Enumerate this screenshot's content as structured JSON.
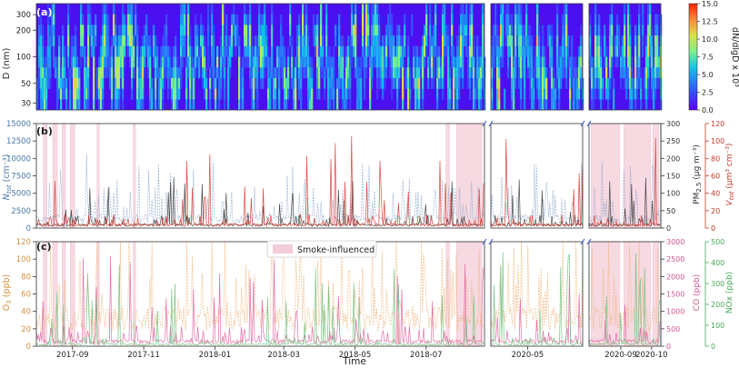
{
  "chart_data": [
    {
      "panel": "(a)",
      "type": "heatmap",
      "ylabel": "D (nm)",
      "yscale": "log",
      "ylim": [
        25,
        400
      ],
      "yticks": [
        "30",
        "50",
        "100",
        "200",
        "300"
      ],
      "colorbar": {
        "label": "dN/dlgD x 10³",
        "range": [
          0,
          15
        ],
        "ticks": [
          "0.0",
          "2.5",
          "5.0",
          "7.5",
          "10.0",
          "12.5",
          "15.0"
        ],
        "colormap": "rainbow"
      }
    },
    {
      "panel": "(b)",
      "type": "line",
      "ylabel_left": "N_tot (cm⁻³)",
      "ylabel_left_main": "N",
      "ylabel_left_sub": "tot",
      "ylabel_left_tail": " (cm⁻³)",
      "ylim_left": [
        0,
        15000
      ],
      "yticks_left": [
        "0",
        "2500",
        "5000",
        "7500",
        "10000",
        "12500",
        "15000"
      ],
      "ylabel_mid": "PM₂.₅ (μg m⁻³)",
      "ylabel_mid_main": "PM",
      "ylabel_mid_sub": "2.5",
      "ylabel_mid_tail": " (μg m⁻³)",
      "ylim_mid": [
        0,
        300
      ],
      "yticks_mid": [
        "0",
        "50",
        "100",
        "150",
        "200",
        "250",
        "300"
      ],
      "ylabel_right": "V_tot (μm³ cm⁻³)",
      "ylabel_right_main": "V",
      "ylabel_right_sub": "tot",
      "ylabel_right_tail": " (μm³ cm⁻³)",
      "ylim_right": [
        0,
        120
      ],
      "yticks_right": [
        "0",
        "20",
        "40",
        "60",
        "80",
        "100",
        "120"
      ],
      "series": [
        {
          "name": "N_tot",
          "color": "#8fa9cc",
          "style": "dashed",
          "baseline": 1500,
          "spike_max": 11000
        },
        {
          "name": "PM2.5",
          "color": "#3a3a3a",
          "style": "solid",
          "baseline": 10,
          "spike_max": 150
        },
        {
          "name": "V_tot",
          "color": "#d9342b",
          "style": "solid",
          "baseline": 4,
          "spike_max": 110
        }
      ]
    },
    {
      "panel": "(c)",
      "type": "line",
      "ylabel_left": "O₃ (ppb)",
      "ylabel_left_main": "O",
      "ylabel_left_sub": "3",
      "ylabel_left_tail": " (ppb)",
      "ylim_left": [
        0,
        120
      ],
      "yticks_left": [
        "0",
        "20",
        "40",
        "60",
        "80",
        "100",
        "120"
      ],
      "ylabel_mid": "CO (ppb)",
      "ylim_mid": [
        0,
        3000
      ],
      "yticks_mid": [
        "0",
        "500",
        "1000",
        "1500",
        "2000",
        "2500",
        "3000"
      ],
      "ylabel_right": "NOx (ppb)",
      "ylim_right": [
        0,
        500
      ],
      "yticks_right": [
        "0",
        "100",
        "200",
        "300",
        "400",
        "500"
      ],
      "legend": {
        "label": "Smoke-influenced",
        "color": "#f3cdd8",
        "position": "top-center"
      },
      "series": [
        {
          "name": "O3",
          "color": "#f0b47a",
          "style": "dashed",
          "baseline": 35,
          "spike_max": 100
        },
        {
          "name": "CO",
          "color": "#e0609e",
          "style": "solid",
          "baseline": 150,
          "spike_max": 2700
        },
        {
          "name": "NOx",
          "color": "#6cc07a",
          "style": "solid",
          "baseline": 10,
          "spike_max": 450
        }
      ]
    }
  ],
  "x_axis": {
    "label": "Time",
    "segments": [
      {
        "start": "2017-08-01",
        "end": "2018-08-20",
        "ticks": [
          "2017-09",
          "2017-11",
          "2018-01",
          "2018-03",
          "2018-05",
          "2018-07"
        ]
      },
      {
        "start": "2020-04-01",
        "end": "2020-06-15",
        "ticks": [
          "2020-05"
        ]
      },
      {
        "start": "2020-08-01",
        "end": "2020-10-10",
        "ticks": [
          "2020-09",
          "2020-10"
        ]
      }
    ]
  },
  "smoke_periods": [
    [
      "2017-08-07",
      "2017-08-10"
    ],
    [
      "2017-08-15",
      "2017-08-19"
    ],
    [
      "2017-08-23",
      "2017-08-26"
    ],
    [
      "2017-08-30",
      "2017-09-03"
    ],
    [
      "2017-09-22",
      "2017-09-24"
    ],
    [
      "2017-10-23",
      "2017-10-25"
    ],
    [
      "2018-07-18",
      "2018-07-21"
    ],
    [
      "2018-07-27",
      "2018-08-18"
    ],
    [
      "2020-08-03",
      "2020-08-31"
    ],
    [
      "2020-09-04",
      "2020-09-30"
    ],
    [
      "2020-10-02",
      "2020-10-08"
    ]
  ]
}
